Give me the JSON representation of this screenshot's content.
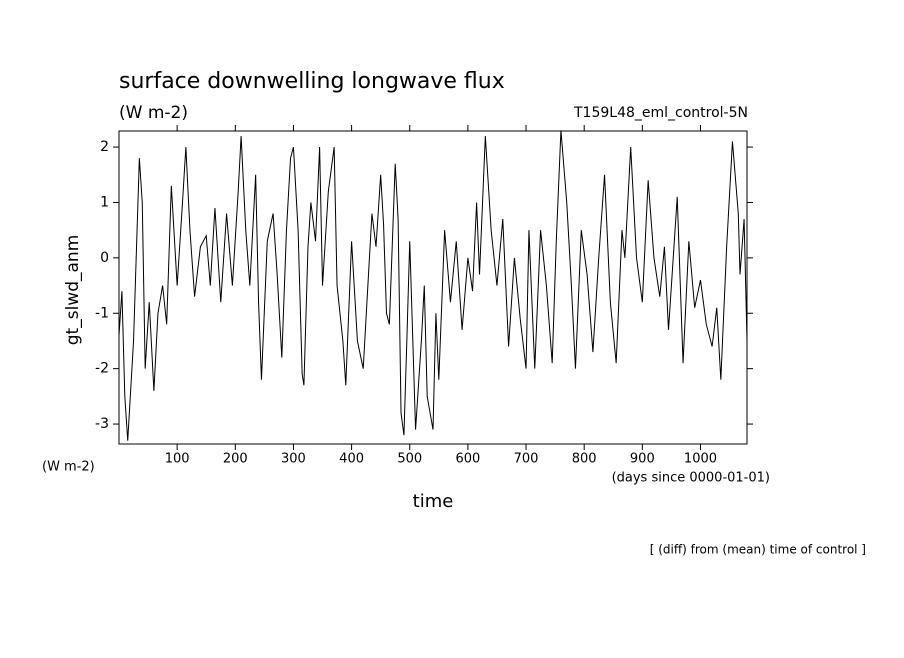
{
  "chart_data": {
    "type": "line",
    "title": "surface downwelling longwave flux",
    "units": "(W m-2)",
    "experiment": "T159L48_eml_control-5N",
    "ylabel": "gt_slwd_anm",
    "yunits": "(W m-2)",
    "xunits": "(days since 0000-01-01)",
    "xlabel": "time",
    "note": "[ (diff) from (mean) time of control ]",
    "xlim": [
      0,
      1080
    ],
    "ylim": [
      -3.36,
      2.29
    ],
    "xticks": [
      100,
      200,
      300,
      400,
      500,
      600,
      700,
      800,
      900,
      1000
    ],
    "yticks": [
      -3,
      -2,
      -1,
      0,
      1,
      2
    ],
    "series": [
      {
        "color": "#000000",
        "x": [
          0,
          5,
          10,
          15,
          25,
          35,
          40,
          45,
          52,
          60,
          67,
          75,
          82,
          90,
          100,
          108,
          115,
          122,
          130,
          140,
          150,
          157,
          165,
          175,
          185,
          195,
          205,
          210,
          218,
          225,
          235,
          240,
          245,
          255,
          265,
          272,
          280,
          288,
          295,
          300,
          308,
          315,
          318,
          325,
          330,
          338,
          345,
          350,
          360,
          370,
          375,
          385,
          390,
          395,
          400,
          410,
          420,
          428,
          435,
          442,
          450,
          455,
          460,
          465,
          475,
          480,
          485,
          490,
          495,
          500,
          510,
          520,
          525,
          530,
          540,
          545,
          550,
          560,
          570,
          580,
          590,
          600,
          608,
          615,
          620,
          630,
          640,
          650,
          660,
          670,
          680,
          690,
          700,
          705,
          715,
          725,
          735,
          745,
          752,
          760,
          770,
          778,
          785,
          795,
          805,
          815,
          825,
          835,
          845,
          855,
          865,
          870,
          880,
          890,
          900,
          910,
          920,
          930,
          938,
          945,
          950,
          960,
          970,
          980,
          990,
          1000,
          1010,
          1020,
          1028,
          1035,
          1045,
          1055,
          1065,
          1068,
          1075,
          1080
        ],
        "values": [
          -1.4,
          -0.6,
          -2.5,
          -3.3,
          -1.5,
          1.8,
          1.0,
          -2.0,
          -0.8,
          -2.4,
          -1.0,
          -0.5,
          -1.2,
          1.3,
          -0.5,
          0.8,
          2.0,
          0.5,
          -0.7,
          0.2,
          0.4,
          -0.5,
          0.9,
          -0.8,
          0.8,
          -0.5,
          1.2,
          2.2,
          0.5,
          -0.5,
          1.5,
          -0.8,
          -2.2,
          0.3,
          0.8,
          -0.3,
          -1.8,
          0.5,
          1.8,
          2.0,
          0.5,
          -2.1,
          -2.3,
          0.2,
          1.0,
          0.3,
          2.0,
          -0.5,
          1.2,
          2.0,
          -0.5,
          -1.5,
          -2.3,
          -1.0,
          0.3,
          -1.5,
          -2.0,
          -0.5,
          0.8,
          0.2,
          1.5,
          0.6,
          -1.0,
          -1.2,
          1.7,
          0.7,
          -2.8,
          -3.2,
          -1.5,
          0.3,
          -3.1,
          -1.5,
          -0.5,
          -2.5,
          -3.1,
          -1.0,
          -2.2,
          0.5,
          -0.8,
          0.3,
          -1.3,
          0.0,
          -0.6,
          1.0,
          -0.3,
          2.2,
          0.5,
          -0.5,
          0.7,
          -1.6,
          0.0,
          -1.1,
          -2.0,
          0.5,
          -2.0,
          0.5,
          -0.5,
          -1.9,
          0.3,
          2.3,
          1.0,
          -0.5,
          -2.0,
          0.5,
          -0.3,
          -1.7,
          0.0,
          1.5,
          -0.8,
          -1.9,
          0.5,
          0.0,
          2.0,
          0.0,
          -0.8,
          1.4,
          0.0,
          -0.7,
          0.2,
          -1.3,
          -0.5,
          1.1,
          -1.9,
          0.3,
          -0.9,
          -0.4,
          -1.2,
          -1.6,
          -0.9,
          -2.2,
          0.2,
          2.1,
          0.8,
          -0.3,
          0.7,
          -1.5
        ]
      }
    ]
  }
}
